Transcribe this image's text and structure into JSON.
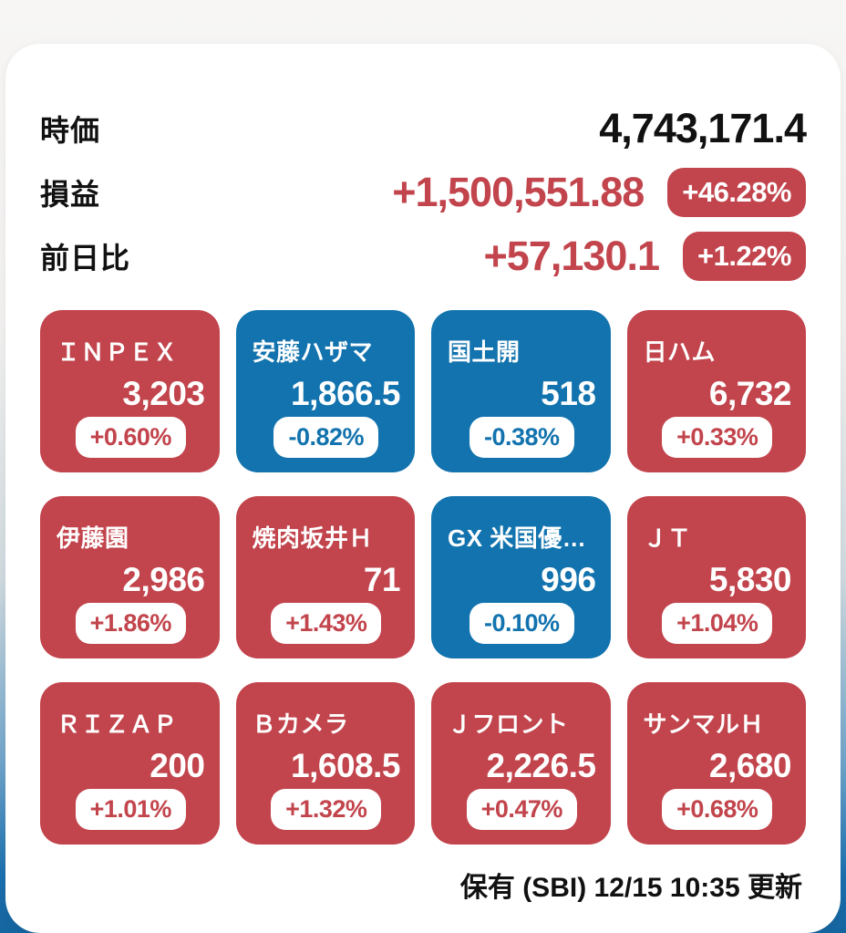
{
  "summary": {
    "rows": [
      {
        "label": "時価",
        "value": "4,743,171.4",
        "badge": null
      },
      {
        "label": "損益",
        "value": "+1,500,551.88",
        "badge": "+46.28%"
      },
      {
        "label": "前日比",
        "value": "+57,130.1",
        "badge": "+1.22%"
      }
    ]
  },
  "tiles": [
    {
      "name": "ＩＮＰＥＸ",
      "price": "3,203",
      "change": "+0.60%",
      "trend": "up"
    },
    {
      "name": "安藤ハザマ",
      "price": "1,866.5",
      "change": "-0.82%",
      "trend": "down"
    },
    {
      "name": "国土開",
      "price": "518",
      "change": "-0.38%",
      "trend": "down"
    },
    {
      "name": "日ハム",
      "price": "6,732",
      "change": "+0.33%",
      "trend": "up"
    },
    {
      "name": "伊藤園",
      "price": "2,986",
      "change": "+1.86%",
      "trend": "up"
    },
    {
      "name": "焼肉坂井Ｈ",
      "price": "71",
      "change": "+1.43%",
      "trend": "up"
    },
    {
      "name": "GX 米国優…",
      "price": "996",
      "change": "-0.10%",
      "trend": "down"
    },
    {
      "name": "ＪＴ",
      "price": "5,830",
      "change": "+1.04%",
      "trend": "up"
    },
    {
      "name": "ＲＩＺＡＰ",
      "price": "200",
      "change": "+1.01%",
      "trend": "up"
    },
    {
      "name": "Ｂカメラ",
      "price": "1,608.5",
      "change": "+1.32%",
      "trend": "up"
    },
    {
      "name": "Ｊフロント",
      "price": "2,226.5",
      "change": "+0.47%",
      "trend": "up"
    },
    {
      "name": "サンマルＨ",
      "price": "2,680",
      "change": "+0.68%",
      "trend": "up"
    }
  ],
  "footer": {
    "status": "保有 (SBI) 12/15 10:35 更新"
  },
  "colors": {
    "up": "#c2444c",
    "down": "#1273ae"
  }
}
